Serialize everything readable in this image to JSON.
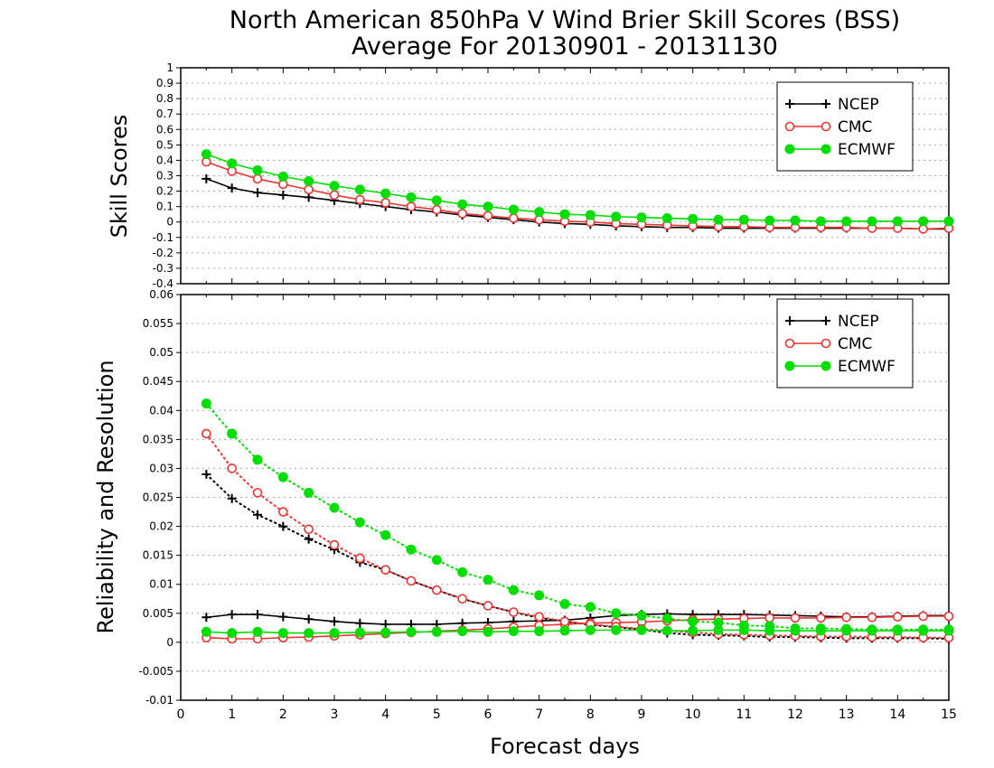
{
  "chart_title": {
    "line1": "North American 850hPa V Wind Brier Skill Scores (BSS)",
    "line2": "Average For 20130901 - 20131130"
  },
  "chart_data": [
    {
      "type": "line",
      "panel": "top",
      "xlabel": "",
      "ylabel": "Skill Scores",
      "xlim": [
        0,
        15
      ],
      "ylim": [
        -0.4,
        1
      ],
      "yticks": [
        "-0.4",
        "-0.3",
        "-0.2",
        "-0.1",
        "0",
        "0.1",
        "0.2",
        "0.3",
        "0.4",
        "0.5",
        "0.6",
        "0.7",
        "0.8",
        "0.9",
        "1"
      ],
      "grid": true,
      "legend_position": "top-right",
      "x": [
        0.5,
        1,
        1.5,
        2,
        2.5,
        3,
        3.5,
        4,
        4.5,
        5,
        5.5,
        6,
        6.5,
        7,
        7.5,
        8,
        8.5,
        9,
        9.5,
        10,
        10.5,
        11,
        11.5,
        12,
        12.5,
        13,
        13.5,
        14,
        14.5,
        15
      ],
      "series": [
        {
          "name": "NCEP",
          "color": "#000000",
          "marker": "plus",
          "line": "solid",
          "values": [
            0.28,
            0.22,
            0.19,
            0.175,
            0.16,
            0.14,
            0.12,
            0.1,
            0.08,
            0.065,
            0.045,
            0.03,
            0.015,
            0.0,
            -0.01,
            -0.015,
            -0.025,
            -0.03,
            -0.035,
            -0.035,
            -0.04,
            -0.04,
            -0.04,
            -0.04,
            -0.04,
            -0.04,
            -0.04,
            -0.04,
            -0.045,
            -0.045
          ]
        },
        {
          "name": "CMC",
          "color": "#ee3333",
          "marker": "open-circle",
          "line": "solid",
          "values": [
            0.39,
            0.33,
            0.28,
            0.245,
            0.21,
            0.175,
            0.145,
            0.125,
            0.1,
            0.08,
            0.055,
            0.04,
            0.025,
            0.015,
            0.005,
            0.0,
            -0.01,
            -0.015,
            -0.02,
            -0.025,
            -0.03,
            -0.03,
            -0.035,
            -0.035,
            -0.035,
            -0.035,
            -0.04,
            -0.04,
            -0.045,
            -0.04
          ]
        },
        {
          "name": "ECMWF",
          "color": "#00dd00",
          "marker": "filled-circle",
          "line": "solid",
          "values": [
            0.44,
            0.38,
            0.335,
            0.295,
            0.265,
            0.235,
            0.21,
            0.185,
            0.16,
            0.14,
            0.115,
            0.1,
            0.08,
            0.065,
            0.05,
            0.045,
            0.035,
            0.03,
            0.025,
            0.02,
            0.015,
            0.015,
            0.01,
            0.01,
            0.005,
            0.005,
            0.005,
            0.005,
            0.005,
            0.005
          ]
        }
      ]
    },
    {
      "type": "line",
      "panel": "bottom",
      "xlabel": "Forecast days",
      "ylabel": "Reliability and Resolution",
      "xlim": [
        0,
        15
      ],
      "ylim": [
        -0.01,
        0.06
      ],
      "xticks": [
        "0",
        "1",
        "2",
        "3",
        "4",
        "5",
        "6",
        "7",
        "8",
        "9",
        "10",
        "11",
        "12",
        "13",
        "14",
        "15"
      ],
      "yticks": [
        "-0.01",
        "-0.005",
        "0",
        "0.005",
        "0.01",
        "0.015",
        "0.02",
        "0.025",
        "0.03",
        "0.035",
        "0.04",
        "0.045",
        "0.05",
        "0.055",
        "0.06"
      ],
      "grid": true,
      "legend_position": "top-right",
      "x": [
        0.5,
        1,
        1.5,
        2,
        2.5,
        3,
        3.5,
        4,
        4.5,
        5,
        5.5,
        6,
        6.5,
        7,
        7.5,
        8,
        8.5,
        9,
        9.5,
        10,
        10.5,
        11,
        11.5,
        12,
        12.5,
        13,
        13.5,
        14,
        14.5,
        15
      ],
      "series": [
        {
          "name": "NCEP",
          "color": "#000000",
          "marker": "plus",
          "line": "solid",
          "values": [
            0.0043,
            0.0048,
            0.0048,
            0.0044,
            0.004,
            0.0036,
            0.0033,
            0.0031,
            0.0031,
            0.0031,
            0.0033,
            0.0034,
            0.0036,
            0.0037,
            0.0038,
            0.0042,
            0.0046,
            0.0048,
            0.0049,
            0.0048,
            0.0048,
            0.0048,
            0.0047,
            0.0046,
            0.0045,
            0.0044,
            0.0044,
            0.0045,
            0.0046,
            0.0046
          ]
        },
        {
          "name": "",
          "color": "#000000",
          "marker": "plus",
          "line": "dotted",
          "values": [
            0.029,
            0.0248,
            0.022,
            0.02,
            0.0178,
            0.016,
            0.0138,
            0.0125,
            0.0106,
            0.009,
            0.0075,
            0.0063,
            0.0052,
            0.0042,
            0.0036,
            0.003,
            0.0026,
            0.0022,
            0.0016,
            0.0013,
            0.0012,
            0.0011,
            0.0009,
            0.0009,
            0.0008,
            0.0007,
            0.0007,
            0.0007,
            0.0007,
            0.0006
          ]
        },
        {
          "name": "CMC",
          "color": "#ee3333",
          "marker": "open-circle",
          "line": "solid",
          "values": [
            0.0008,
            0.0006,
            0.0006,
            0.0008,
            0.0009,
            0.0011,
            0.0013,
            0.0015,
            0.0017,
            0.0019,
            0.0021,
            0.0023,
            0.0026,
            0.0029,
            0.0031,
            0.0033,
            0.0034,
            0.0035,
            0.0037,
            0.0039,
            0.004,
            0.0041,
            0.0042,
            0.0042,
            0.0042,
            0.0043,
            0.0043,
            0.0044,
            0.0045,
            0.0045
          ]
        },
        {
          "name": "",
          "color": "#ee3333",
          "marker": "open-circle",
          "line": "dotted",
          "values": [
            0.036,
            0.03,
            0.0258,
            0.0225,
            0.0195,
            0.0168,
            0.0145,
            0.0125,
            0.0106,
            0.009,
            0.0075,
            0.0063,
            0.0052,
            0.0044,
            0.0036,
            0.0031,
            0.0027,
            0.0023,
            0.002,
            0.0017,
            0.0014,
            0.0013,
            0.0012,
            0.0011,
            0.001,
            0.001,
            0.0009,
            0.0009,
            0.0008,
            0.0008
          ]
        },
        {
          "name": "ECMWF",
          "color": "#00dd00",
          "marker": "filled-circle",
          "line": "solid",
          "values": [
            0.0018,
            0.0016,
            0.0018,
            0.0016,
            0.0016,
            0.0016,
            0.0017,
            0.0017,
            0.0018,
            0.0018,
            0.0019,
            0.0018,
            0.0019,
            0.0019,
            0.002,
            0.0021,
            0.0021,
            0.0021,
            0.002,
            0.002,
            0.0021,
            0.0021,
            0.002,
            0.002,
            0.002,
            0.002,
            0.002,
            0.002,
            0.002,
            0.002
          ]
        },
        {
          "name": "",
          "color": "#00dd00",
          "marker": "filled-circle",
          "line": "dotted",
          "values": [
            0.0412,
            0.036,
            0.0315,
            0.0285,
            0.0258,
            0.0232,
            0.0207,
            0.0185,
            0.016,
            0.0142,
            0.0121,
            0.0108,
            0.009,
            0.0081,
            0.0066,
            0.0061,
            0.005,
            0.0046,
            0.0041,
            0.0036,
            0.0034,
            0.0029,
            0.0028,
            0.0024,
            0.0024,
            0.0023,
            0.0022,
            0.0022,
            0.0022,
            0.0022
          ]
        }
      ]
    }
  ]
}
